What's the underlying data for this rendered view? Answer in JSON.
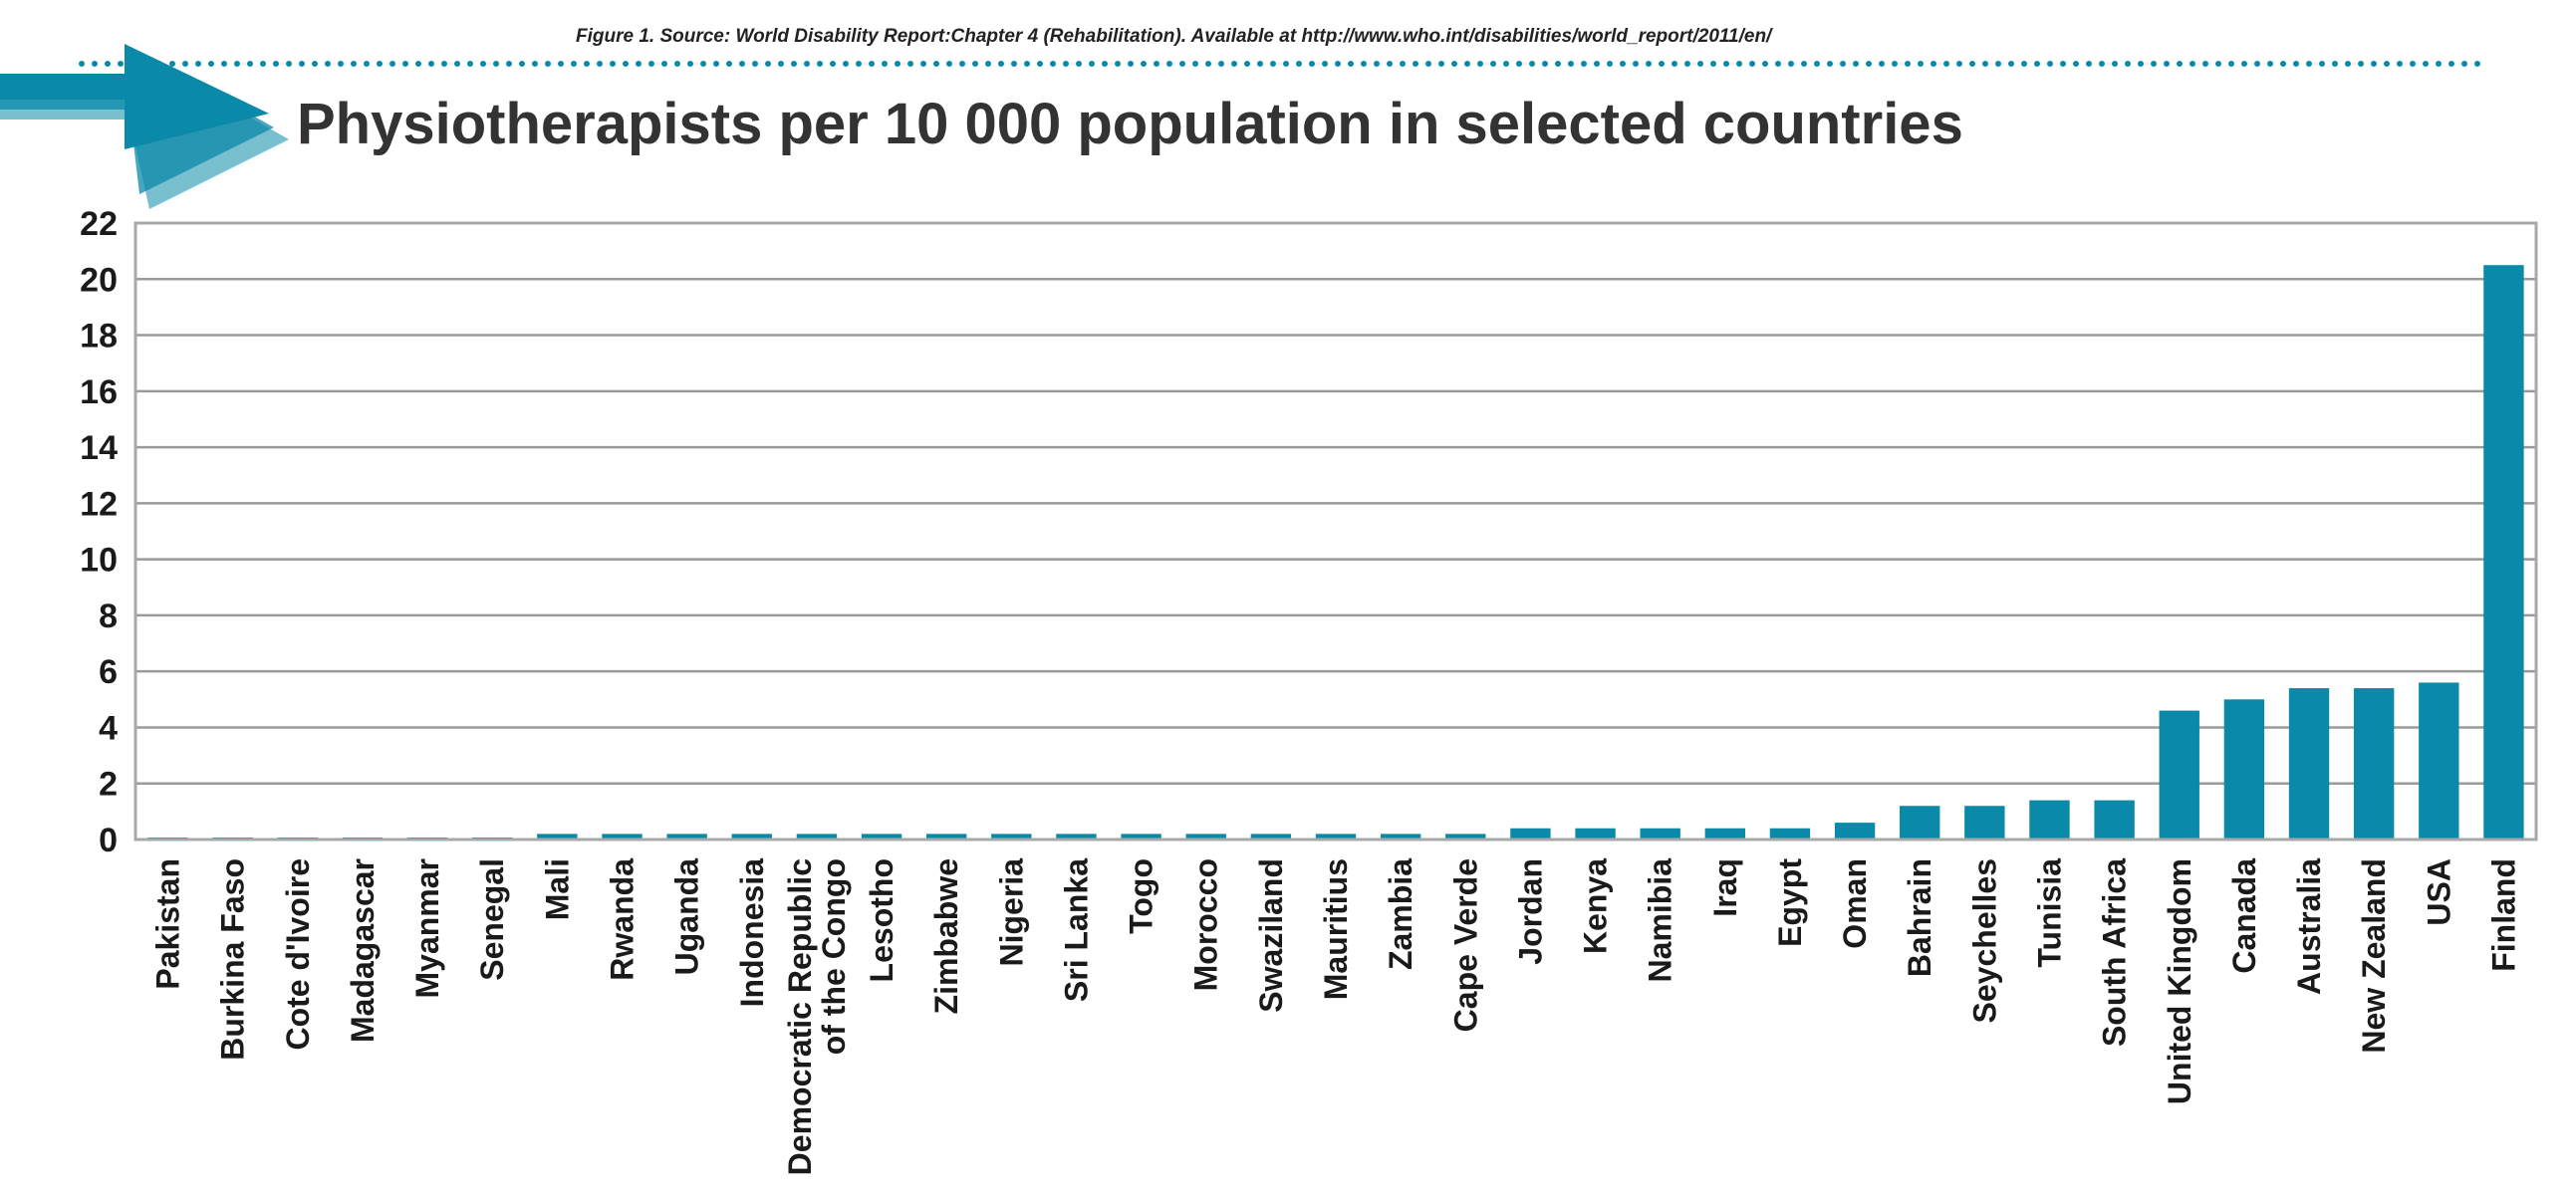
{
  "figure": {
    "caption": "Figure 1. Source: World Disability Report:Chapter 4 (Rehabilitation). Available at http://www.who.int/disabilities/world_report/2011/en/",
    "title": "Physiotherapists per 10 000 population in selected countries"
  },
  "colors": {
    "bar": "#0a8aa8",
    "arrow": "#0a8aa8",
    "dots": "#0a8aa8",
    "grid": "#9a9a9a",
    "frame": "#a8a8a8"
  },
  "chart_data": {
    "type": "bar",
    "categories": [
      "Pakistan",
      "Burkina Faso",
      "Cote d'Ivoire",
      "Madagascar",
      "Myanmar",
      "Senegal",
      "Mali",
      "Rwanda",
      "Uganda",
      "Indonesia",
      "Democratic Republic of the Congo",
      "Lesotho",
      "Zimbabwe",
      "Nigeria",
      "Sri Lanka",
      "Togo",
      "Morocco",
      "Swaziland",
      "Mauritius",
      "Zambia",
      "Cape Verde",
      "Jordan",
      "Kenya",
      "Namibia",
      "Iraq",
      "Egypt",
      "Oman",
      "Bahrain",
      "Seychelles",
      "Tunisia",
      "South Africa",
      "United Kingdom",
      "Canada",
      "Australia",
      "New Zealand",
      "USA",
      "Finland"
    ],
    "category_lines": [
      [
        "Pakistan"
      ],
      [
        "Burkina Faso"
      ],
      [
        "Cote d'Ivoire"
      ],
      [
        "Madagascar"
      ],
      [
        "Myanmar"
      ],
      [
        "Senegal"
      ],
      [
        "Mali"
      ],
      [
        "Rwanda"
      ],
      [
        "Uganda"
      ],
      [
        "Indonesia"
      ],
      [
        "Democratic Republic",
        "of the Congo"
      ],
      [
        "Lesotho"
      ],
      [
        "Zimbabwe"
      ],
      [
        "Nigeria"
      ],
      [
        "Sri Lanka"
      ],
      [
        "Togo"
      ],
      [
        "Morocco"
      ],
      [
        "Swaziland"
      ],
      [
        "Mauritius"
      ],
      [
        "Zambia"
      ],
      [
        "Cape Verde"
      ],
      [
        "Jordan"
      ],
      [
        "Kenya"
      ],
      [
        "Namibia"
      ],
      [
        "Iraq"
      ],
      [
        "Egypt"
      ],
      [
        "Oman"
      ],
      [
        "Bahrain"
      ],
      [
        "Seychelles"
      ],
      [
        "Tunisia"
      ],
      [
        "South Africa"
      ],
      [
        "United Kingdom"
      ],
      [
        "Canada"
      ],
      [
        "Australia"
      ],
      [
        "New Zealand"
      ],
      [
        "USA"
      ],
      [
        "Finland"
      ]
    ],
    "values": [
      0.05,
      0.05,
      0.05,
      0.05,
      0.05,
      0.05,
      0.2,
      0.2,
      0.2,
      0.2,
      0.2,
      0.2,
      0.2,
      0.2,
      0.2,
      0.2,
      0.2,
      0.2,
      0.2,
      0.2,
      0.2,
      0.4,
      0.4,
      0.4,
      0.4,
      0.4,
      0.6,
      1.2,
      1.2,
      1.4,
      1.4,
      4.6,
      5.0,
      5.4,
      5.4,
      5.6,
      20.5
    ],
    "yticks": [
      "0",
      "2",
      "4",
      "6",
      "8",
      "10",
      "12",
      "14",
      "16",
      "18",
      "20",
      "22"
    ],
    "ylim": [
      0,
      22
    ],
    "grid": true,
    "legend": "none"
  }
}
